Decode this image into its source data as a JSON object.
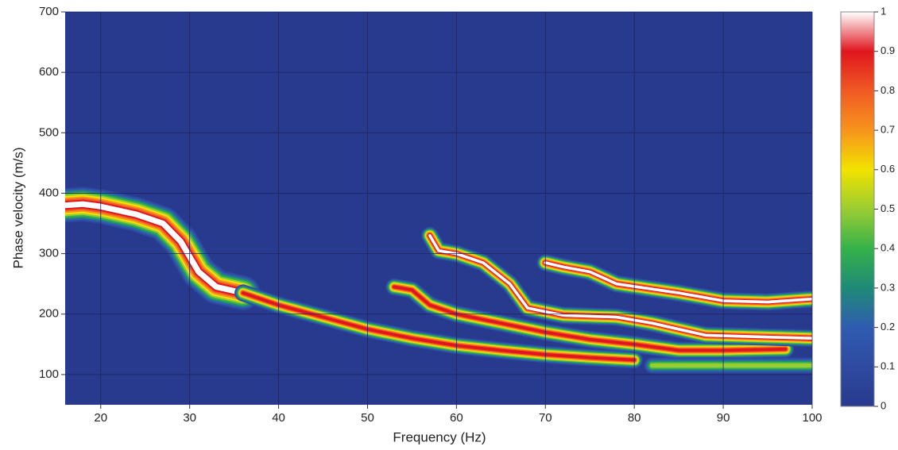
{
  "chart_data": {
    "type": "heatmap",
    "xlabel": "Frequency (Hz)",
    "ylabel": "Phase velocity (m/s)",
    "xlim": [
      16,
      100
    ],
    "xticks": [
      20,
      30,
      40,
      50,
      60,
      70,
      80,
      90,
      100
    ],
    "ylim": [
      50,
      700
    ],
    "yticks": [
      100,
      200,
      300,
      400,
      500,
      600,
      700
    ],
    "grid": true,
    "clim": [
      0,
      1
    ],
    "cticks": [
      0,
      0.1,
      0.2,
      0.3,
      0.4,
      0.5,
      0.6,
      0.7,
      0.8,
      0.9,
      1
    ],
    "colormap": [
      "#283a8e",
      "#2e4aa0",
      "#2f5cb0",
      "#1f8a78",
      "#35b24a",
      "#9acd32",
      "#f2e200",
      "#f7941d",
      "#f05a24",
      "#e0161e",
      "#ffffff"
    ],
    "series": [
      {
        "x": [
          16,
          18,
          20,
          24,
          27,
          29,
          31,
          33,
          36
        ],
        "values": [
          380,
          382,
          378,
          365,
          350,
          320,
          270,
          245,
          235
        ],
        "peak": 1
      },
      {
        "x": [
          36,
          40,
          45,
          50,
          55,
          60,
          65,
          70,
          75,
          80
        ],
        "values": [
          235,
          215,
          195,
          175,
          160,
          148,
          140,
          133,
          128,
          124
        ],
        "peak": 0.9
      },
      {
        "x": [
          53,
          55,
          57,
          60,
          65,
          70,
          75,
          80,
          85,
          90,
          97
        ],
        "values": [
          245,
          240,
          215,
          200,
          185,
          170,
          158,
          150,
          140,
          140,
          142
        ],
        "peak": 0.9
      },
      {
        "x": [
          57,
          58,
          60,
          63,
          66,
          68,
          72,
          78,
          82,
          85,
          88,
          95,
          100
        ],
        "values": [
          330,
          305,
          300,
          285,
          250,
          210,
          198,
          195,
          185,
          175,
          165,
          162,
          160
        ],
        "peak": 1
      },
      {
        "x": [
          70,
          72,
          75,
          78,
          85,
          90,
          95,
          100
        ],
        "values": [
          285,
          278,
          270,
          250,
          235,
          222,
          220,
          225
        ],
        "peak": 1
      },
      {
        "x": [
          82,
          86,
          90,
          95,
          100
        ],
        "values": [
          115,
          115,
          115,
          115,
          115
        ],
        "peak": 0.5
      }
    ]
  }
}
